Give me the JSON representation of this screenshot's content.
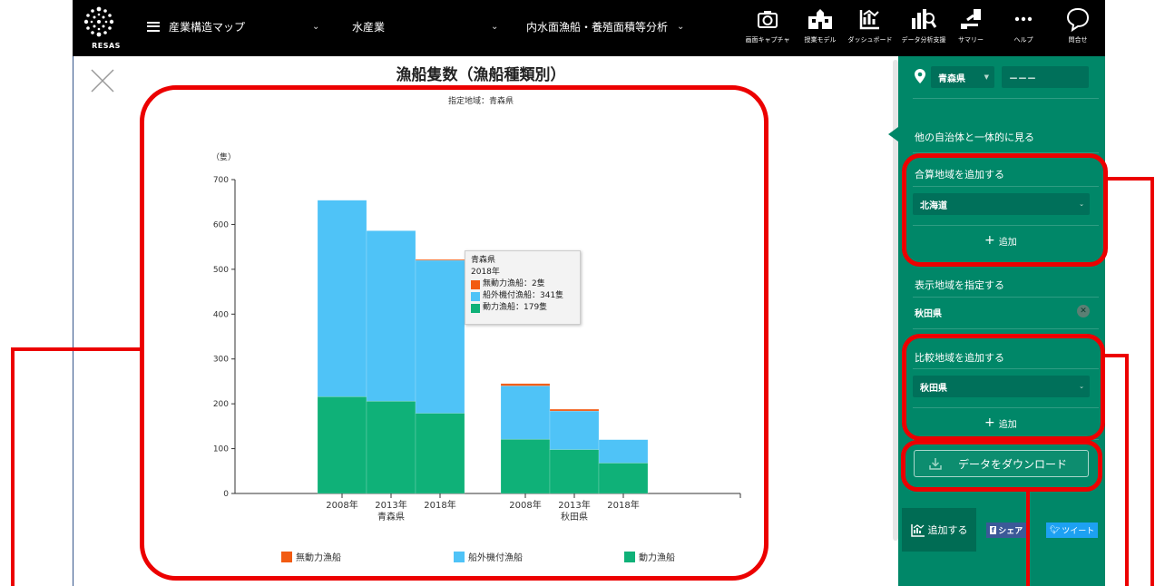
{
  "nav": {
    "logo_text": "RESAS",
    "menu1": "産業構造マップ",
    "menu2": "水産業",
    "menu3": "内水面漁船・養殖面積等分析",
    "tools": [
      {
        "label": "画面キャプチャ",
        "icon": "camera-icon"
      },
      {
        "label": "授業モデル",
        "icon": "school-icon"
      },
      {
        "label": "ダッシュボード",
        "icon": "dashboard-icon"
      },
      {
        "label": "データ分析支援",
        "icon": "data-analysis-icon"
      },
      {
        "label": "サマリー",
        "icon": "summary-icon"
      },
      {
        "label": "ヘルプ",
        "icon": "help-dots-icon"
      },
      {
        "label": "問合せ",
        "icon": "chat-bubble-icon"
      }
    ]
  },
  "chart_title": "漁船隻数（漁船種類別）",
  "chart_subtitle": "指定地域：青森県",
  "chart_data": {
    "type": "bar",
    "stacked": true,
    "ylabel": "（隻）",
    "ylim": [
      0,
      700
    ],
    "yticks": [
      0,
      100,
      200,
      300,
      400,
      500,
      600,
      700
    ],
    "groups": [
      {
        "name": "青森県",
        "categories": [
          "2008年",
          "2013年",
          "2018年"
        ]
      },
      {
        "name": "秋田県",
        "categories": [
          "2008年",
          "2013年",
          "2018年"
        ]
      }
    ],
    "series": [
      {
        "name": "動力漁船",
        "color": "#0fb178",
        "values": [
          216,
          206,
          179,
          121,
          98,
          68
        ]
      },
      {
        "name": "船外機付漁船",
        "color": "#4fc3f7",
        "values": [
          438,
          380,
          341,
          119,
          86,
          52
        ]
      },
      {
        "name": "無動力漁船",
        "color": "#f25b12",
        "values": [
          0,
          0,
          2,
          5,
          4,
          0
        ]
      }
    ],
    "legend_order": [
      "無動力漁船",
      "船外機付漁船",
      "動力漁船"
    ],
    "legend_position": "bottom"
  },
  "tooltip": {
    "region": "青森県",
    "year": "2018年",
    "rows": [
      {
        "text": "無動力漁船：2隻",
        "color": "#f25b12"
      },
      {
        "text": "船外機付漁船：341隻",
        "color": "#4fc3f7"
      },
      {
        "text": "動力漁船：179隻",
        "color": "#0fb178"
      }
    ]
  },
  "panel": {
    "prefecture_select": "青森県",
    "city_select": "－－－",
    "other_municipalities_label": "他の自治体と一体的に見る",
    "sum_region_label": "合算地域を追加する",
    "sum_region_select": "北海道",
    "add_label": "追加",
    "display_region_label": "表示地域を指定する",
    "display_region_value": "秋田県",
    "compare_region_label": "比較地域を追加する",
    "compare_region_select": "秋田県",
    "download_label": "データをダウンロード",
    "add_graph_label": "追加する",
    "facebook_label": "シェア",
    "twitter_label": "ツイート"
  },
  "colors": {
    "topbar": "#000000",
    "panel": "#008768",
    "annotation": "#ec0000"
  }
}
